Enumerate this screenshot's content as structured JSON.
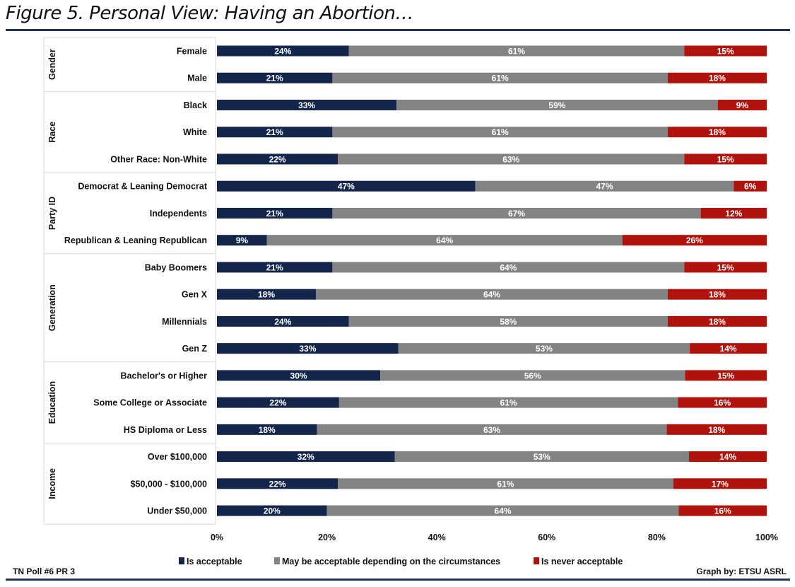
{
  "title": "Figure 5. Personal View: Having an Abortion…",
  "footer_left": "TN Poll #6 PR 3",
  "footer_right": "Graph by: ETSU ASRL",
  "chart_data": {
    "type": "bar",
    "orientation": "horizontal",
    "stacked": "100%",
    "xlim": [
      0,
      100
    ],
    "x_ticks": [
      "0%",
      "20%",
      "40%",
      "60%",
      "80%",
      "100%"
    ],
    "legend_position": "bottom",
    "groups": [
      {
        "name": "Gender",
        "categories": [
          "Female",
          "Male"
        ]
      },
      {
        "name": "Race",
        "categories": [
          "Black",
          "White",
          "Other Race: Non-White"
        ]
      },
      {
        "name": "Party ID",
        "categories": [
          "Democrat & Leaning Democrat",
          "Independents",
          "Republican & Leaning Republican"
        ]
      },
      {
        "name": "Generation",
        "categories": [
          "Baby Boomers",
          "Gen X",
          "Millennials",
          "Gen Z"
        ]
      },
      {
        "name": "Education",
        "categories": [
          "Bachelor's or Higher",
          "Some College or Associate",
          "HS Diploma or Less"
        ]
      },
      {
        "name": "Income",
        "categories": [
          "Over $100,000",
          "$50,000 - $100,000",
          "Under $50,000"
        ]
      }
    ],
    "series": [
      {
        "name": "Is acceptable",
        "color": "#13254a",
        "values": [
          24,
          21,
          33,
          21,
          22,
          47,
          21,
          9,
          21,
          18,
          24,
          33,
          30,
          22,
          18,
          32,
          22,
          20
        ]
      },
      {
        "name": "May be acceptable depending on the circumstances",
        "color": "#838383",
        "values": [
          61,
          61,
          59,
          61,
          63,
          47,
          67,
          64,
          64,
          64,
          58,
          53,
          56,
          61,
          63,
          53,
          61,
          64
        ]
      },
      {
        "name": "Is never acceptable",
        "color": "#b0120c",
        "values": [
          15,
          18,
          9,
          18,
          15,
          6,
          12,
          26,
          15,
          18,
          18,
          14,
          15,
          16,
          18,
          14,
          17,
          16
        ]
      }
    ]
  }
}
